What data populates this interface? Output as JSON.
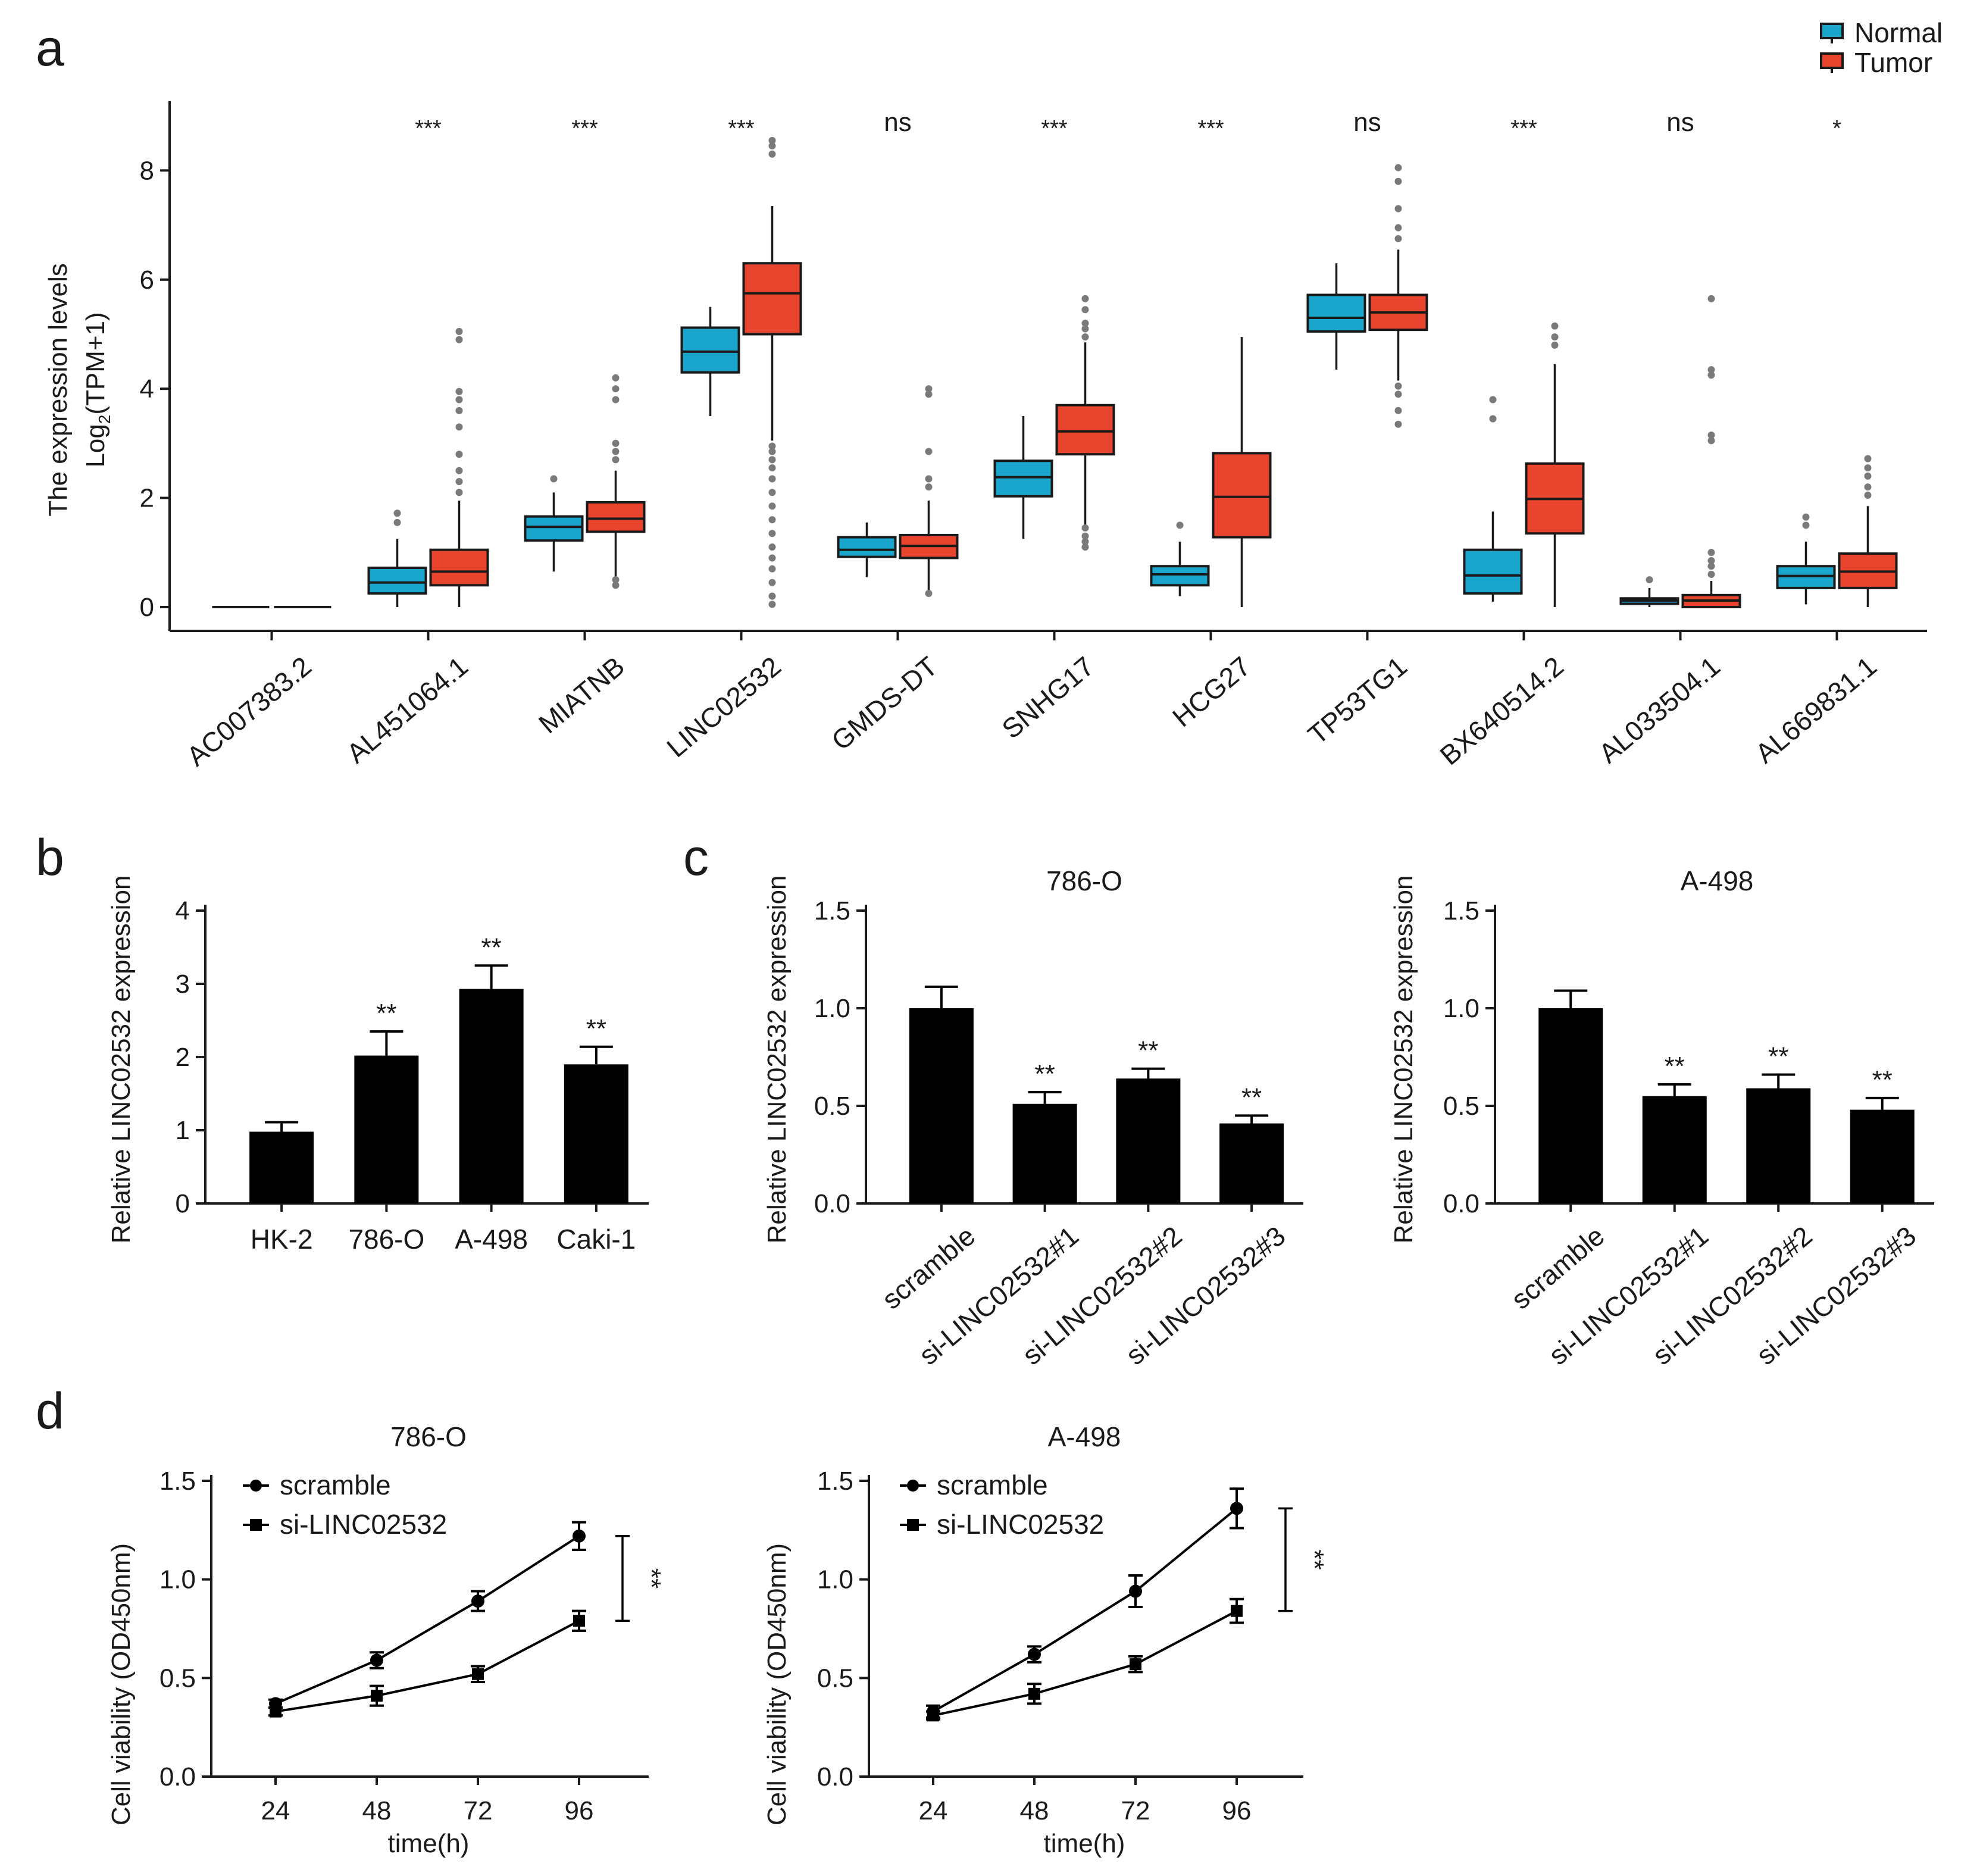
{
  "colors": {
    "normal": "#1aa6cc",
    "tumor": "#e8442e",
    "black": "#000000",
    "outlier": "#7a7a7a"
  },
  "panel_labels": [
    "a",
    "b",
    "c",
    "d"
  ],
  "chart_data": [
    {
      "id": "a",
      "type": "box",
      "ylabel_line1": "The expression levels",
      "ylabel_line2_pre": "Log",
      "ylabel_line2_sub": "2",
      "ylabel_line2_post": "(TPM+1)",
      "ylim": [
        0,
        9
      ],
      "yticks": [
        "0",
        "2",
        "4",
        "6",
        "8"
      ],
      "ytick_values": [
        0,
        2,
        4,
        6,
        8
      ],
      "legend": [
        {
          "name": "Normal",
          "color": "#1aa6cc"
        },
        {
          "name": "Tumor",
          "color": "#e8442e"
        }
      ],
      "categories": [
        "AC007383.2",
        "AL451064.1",
        "MIATNB",
        "LINC02532",
        "GMDS-DT",
        "SNHG17",
        "HCG27",
        "TP53TG1",
        "BX640514.2",
        "AL033504.1",
        "AL669831.1"
      ],
      "significance": [
        "",
        "***",
        "***",
        "***",
        "ns",
        "***",
        "***",
        "ns",
        "***",
        "ns",
        "*"
      ],
      "normal": [
        {
          "min": 0,
          "q1": 0,
          "med": 0,
          "q3": 0,
          "max": 0,
          "out": []
        },
        {
          "min": 0.0,
          "q1": 0.25,
          "med": 0.45,
          "q3": 0.72,
          "max": 1.25,
          "out": [
            1.55,
            1.72
          ]
        },
        {
          "min": 0.65,
          "q1": 1.22,
          "med": 1.47,
          "q3": 1.66,
          "max": 2.1,
          "out": [
            2.35
          ]
        },
        {
          "min": 3.5,
          "q1": 4.3,
          "med": 4.68,
          "q3": 5.12,
          "max": 5.5,
          "out": []
        },
        {
          "min": 0.55,
          "q1": 0.92,
          "med": 1.05,
          "q3": 1.28,
          "max": 1.55,
          "out": []
        },
        {
          "min": 1.25,
          "q1": 2.03,
          "med": 2.38,
          "q3": 2.68,
          "max": 3.5,
          "out": []
        },
        {
          "min": 0.2,
          "q1": 0.4,
          "med": 0.6,
          "q3": 0.75,
          "max": 1.2,
          "out": [
            1.5
          ]
        },
        {
          "min": 4.35,
          "q1": 5.05,
          "med": 5.3,
          "q3": 5.72,
          "max": 6.3,
          "out": []
        },
        {
          "min": 0.1,
          "q1": 0.25,
          "med": 0.58,
          "q3": 1.05,
          "max": 1.75,
          "out": [
            3.45,
            3.8
          ]
        },
        {
          "min": 0.0,
          "q1": 0.06,
          "med": 0.12,
          "q3": 0.16,
          "max": 0.35,
          "out": [
            0.5
          ]
        },
        {
          "min": 0.05,
          "q1": 0.35,
          "med": 0.57,
          "q3": 0.75,
          "max": 1.2,
          "out": [
            1.5,
            1.65
          ]
        }
      ],
      "tumor": [
        {
          "min": 0,
          "q1": 0,
          "med": 0,
          "q3": 0,
          "max": 0,
          "out": []
        },
        {
          "min": 0.0,
          "q1": 0.4,
          "med": 0.65,
          "q3": 1.05,
          "max": 1.95,
          "out": [
            2.1,
            2.3,
            2.5,
            2.8,
            3.3,
            3.6,
            3.8,
            3.95,
            4.9,
            5.05
          ]
        },
        {
          "min": 0.5,
          "q1": 1.38,
          "med": 1.62,
          "q3": 1.92,
          "max": 2.5,
          "out": [
            0.4,
            0.5,
            2.7,
            2.85,
            3.0,
            3.8,
            4.0,
            4.2
          ]
        },
        {
          "min": 3.05,
          "q1": 5.0,
          "med": 5.75,
          "q3": 6.3,
          "max": 7.35,
          "out": [
            0.05,
            0.2,
            0.45,
            0.7,
            0.9,
            1.1,
            1.35,
            1.6,
            1.85,
            2.1,
            2.35,
            2.55,
            2.7,
            2.85,
            2.95,
            8.3,
            8.45,
            8.55
          ]
        },
        {
          "min": 0.3,
          "q1": 0.9,
          "med": 1.12,
          "q3": 1.32,
          "max": 1.95,
          "out": [
            0.25,
            2.2,
            2.35,
            2.85,
            3.9,
            4.0
          ]
        },
        {
          "min": 1.4,
          "q1": 2.8,
          "med": 3.22,
          "q3": 3.7,
          "max": 4.85,
          "out": [
            1.1,
            1.2,
            1.3,
            1.45,
            4.95,
            5.1,
            5.2,
            5.45,
            5.65
          ]
        },
        {
          "min": 0.0,
          "q1": 1.28,
          "med": 2.02,
          "q3": 2.82,
          "max": 4.95,
          "out": []
        },
        {
          "min": 4.15,
          "q1": 5.08,
          "med": 5.4,
          "q3": 5.72,
          "max": 6.55,
          "out": [
            3.35,
            3.6,
            3.9,
            4.05,
            6.75,
            6.95,
            7.3,
            7.8,
            8.05
          ]
        },
        {
          "min": 0.0,
          "q1": 1.35,
          "med": 1.98,
          "q3": 2.63,
          "max": 4.45,
          "out": [
            4.8,
            4.95,
            5.15
          ]
        },
        {
          "min": 0.0,
          "q1": 0.0,
          "med": 0.12,
          "q3": 0.22,
          "max": 0.48,
          "out": [
            0.6,
            0.75,
            0.85,
            1.0,
            3.05,
            3.15,
            4.25,
            4.35,
            5.65
          ]
        },
        {
          "min": 0.0,
          "q1": 0.35,
          "med": 0.65,
          "q3": 0.98,
          "max": 1.85,
          "out": [
            2.05,
            2.2,
            2.4,
            2.55,
            2.72
          ]
        }
      ]
    },
    {
      "id": "b",
      "type": "bar",
      "ylabel": "Relative LINC02532 expression",
      "ylim": [
        0,
        4
      ],
      "yticks": [
        "0",
        "1",
        "2",
        "3",
        "4"
      ],
      "ytick_values": [
        0,
        1,
        2,
        3,
        4
      ],
      "categories": [
        "HK-2",
        "786-O",
        "A-498",
        "Caki-1"
      ],
      "values": [
        0.98,
        2.02,
        2.93,
        1.9
      ],
      "errors": [
        0.13,
        0.33,
        0.32,
        0.24
      ],
      "significance": [
        "",
        "**",
        "**",
        "**"
      ]
    },
    {
      "id": "c1",
      "type": "bar",
      "title": "786-O",
      "ylabel": "Relative LINC02532 expression",
      "ylim": [
        0,
        1.5
      ],
      "yticks": [
        "0.0",
        "0.5",
        "1.0",
        "1.5"
      ],
      "ytick_values": [
        0,
        0.5,
        1.0,
        1.5
      ],
      "categories": [
        "scramble",
        "si-LINC02532#1",
        "si-LINC02532#2",
        "si-LINC02532#3"
      ],
      "values": [
        1.0,
        0.51,
        0.64,
        0.41
      ],
      "errors": [
        0.11,
        0.06,
        0.05,
        0.04
      ],
      "significance": [
        "",
        "**",
        "**",
        "**"
      ]
    },
    {
      "id": "c2",
      "type": "bar",
      "title": "A-498",
      "ylabel": "Relative LINC02532 expression",
      "ylim": [
        0,
        1.5
      ],
      "yticks": [
        "0.0",
        "0.5",
        "1.0",
        "1.5"
      ],
      "ytick_values": [
        0,
        0.5,
        1.0,
        1.5
      ],
      "categories": [
        "scramble",
        "si-LINC02532#1",
        "si-LINC02532#2",
        "si-LINC02532#3"
      ],
      "values": [
        1.0,
        0.55,
        0.59,
        0.48
      ],
      "errors": [
        0.09,
        0.06,
        0.07,
        0.06
      ],
      "significance": [
        "",
        "**",
        "**",
        "**"
      ]
    },
    {
      "id": "d1",
      "type": "line",
      "title": "786-O",
      "xlabel": "time(h)",
      "ylabel": "Cell viability (OD450nm)",
      "ylim": [
        0,
        1.5
      ],
      "yticks": [
        "0.0",
        "0.5",
        "1.0",
        "1.5"
      ],
      "ytick_values": [
        0,
        0.5,
        1.0,
        1.5
      ],
      "x": [
        "24",
        "48",
        "72",
        "96"
      ],
      "series": [
        {
          "name": "scramble",
          "marker": "circle",
          "values": [
            0.37,
            0.59,
            0.89,
            1.22
          ],
          "errors": [
            0.02,
            0.04,
            0.05,
            0.07
          ]
        },
        {
          "name": "si-LINC02532",
          "marker": "square",
          "values": [
            0.33,
            0.41,
            0.52,
            0.79
          ],
          "errors": [
            0.02,
            0.05,
            0.04,
            0.05
          ]
        }
      ],
      "significance": "**"
    },
    {
      "id": "d2",
      "type": "line",
      "title": "A-498",
      "xlabel": "time(h)",
      "ylabel": "Cell viability (OD450nm)",
      "ylim": [
        0,
        1.5
      ],
      "yticks": [
        "0.0",
        "0.5",
        "1.0",
        "1.5"
      ],
      "ytick_values": [
        0,
        0.5,
        1.0,
        1.5
      ],
      "x": [
        "24",
        "48",
        "72",
        "96"
      ],
      "series": [
        {
          "name": "scramble",
          "marker": "circle",
          "values": [
            0.33,
            0.62,
            0.94,
            1.36
          ],
          "errors": [
            0.03,
            0.04,
            0.08,
            0.1
          ]
        },
        {
          "name": "si-LINC02532",
          "marker": "square",
          "values": [
            0.31,
            0.42,
            0.57,
            0.84
          ],
          "errors": [
            0.02,
            0.05,
            0.04,
            0.06
          ]
        }
      ],
      "significance": "**"
    }
  ]
}
